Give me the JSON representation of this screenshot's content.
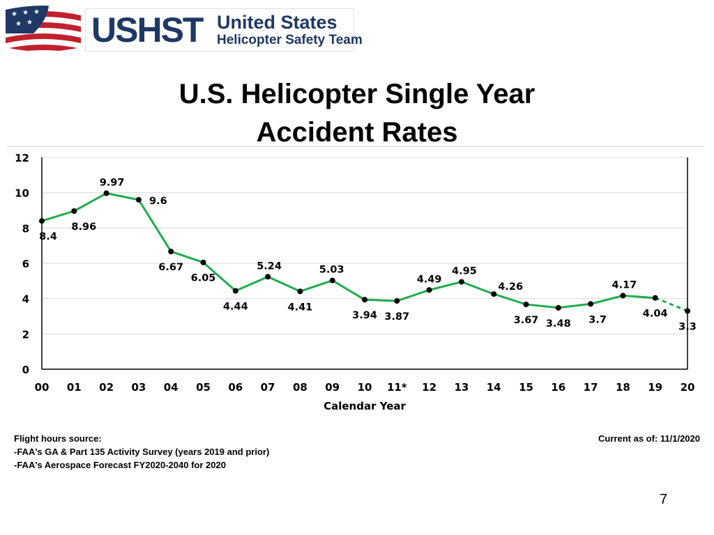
{
  "logo": {
    "acronym": "USHST",
    "name_line1": "United States",
    "name_line2": "Helicopter Safety Team",
    "colors": {
      "navy": "#1f3864",
      "red": "#c0212f",
      "white": "#ffffff"
    }
  },
  "slide": {
    "title_line1": "U.S. Helicopter Single Year",
    "title_line2": "Accident Rates",
    "source_heading": "Flight hours source:",
    "source_line1": "-FAA's GA & Part 135 Activity Survey (years 2019 and prior)",
    "source_line2": "-FAA's Aerospace Forecast FY2020-2040 for 2020",
    "current_as_of": "Current as of:  11/1/2020",
    "page_number": "7"
  },
  "chart_data": {
    "type": "line",
    "title": "",
    "xlabel": "Calendar Year",
    "ylabel": "",
    "ylim": [
      0,
      12
    ],
    "yticks": [
      0,
      2,
      4,
      6,
      8,
      10,
      12
    ],
    "grid": true,
    "line_color": "#1fac4e",
    "marker_color": "#000000",
    "categories": [
      "00",
      "01",
      "02",
      "03",
      "04",
      "05",
      "06",
      "07",
      "08",
      "09",
      "10",
      "11*",
      "12",
      "13",
      "14",
      "15",
      "16",
      "17",
      "18",
      "19",
      "20"
    ],
    "series": [
      {
        "values": [
          8.4,
          8.96,
          9.97,
          9.6,
          6.67,
          6.05,
          4.44,
          5.24,
          4.41,
          5.03,
          3.94,
          3.87,
          4.49,
          4.95,
          4.26,
          3.67,
          3.48,
          3.7,
          4.17,
          4.04,
          3.3
        ],
        "data_labels": [
          "8.4",
          "8.96",
          "9.97",
          "9.6",
          "6.67",
          "6.05",
          "4.44",
          "5.24",
          "4.41",
          "5.03",
          "3.94",
          "3.87",
          "4.49",
          "4.95",
          "4.26",
          "3.67",
          "3.48",
          "3.7",
          "4.17",
          "4.04",
          "3.3"
        ],
        "dashed_last_segment": true
      }
    ]
  }
}
